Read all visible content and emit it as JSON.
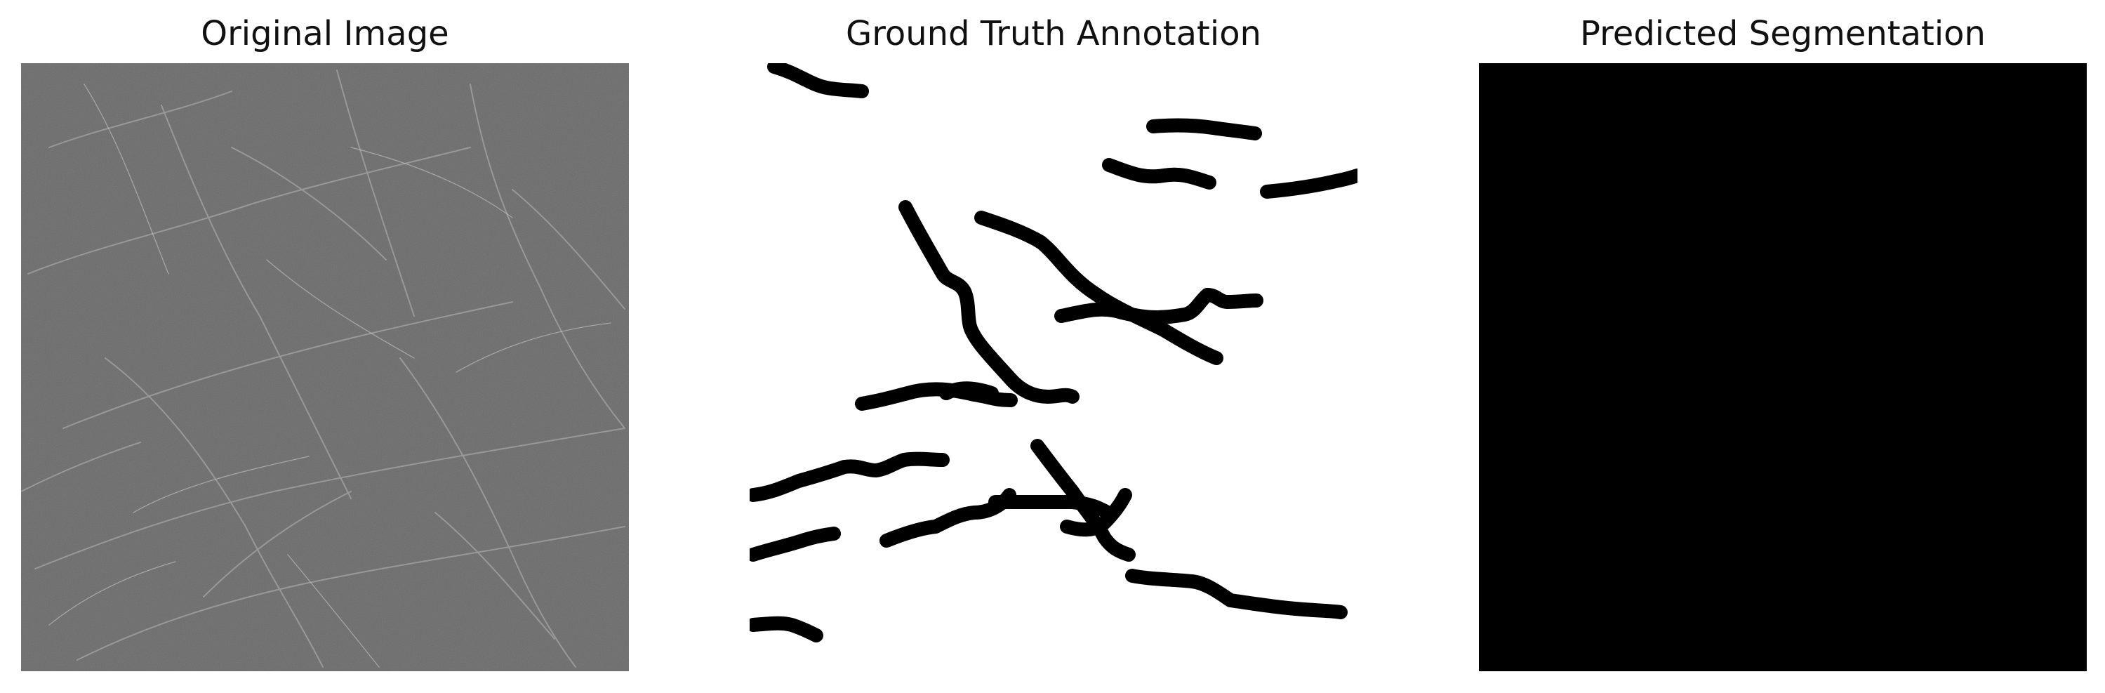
{
  "panels": [
    {
      "title": "Original Image"
    },
    {
      "title": "Ground Truth Annotation"
    },
    {
      "title": "Predicted Segmentation"
    }
  ],
  "colors": {
    "background": "#ffffff",
    "original_texture_base": "#6b6b6b",
    "annotation_stroke": "#000000",
    "prediction_fill": "#000000"
  }
}
